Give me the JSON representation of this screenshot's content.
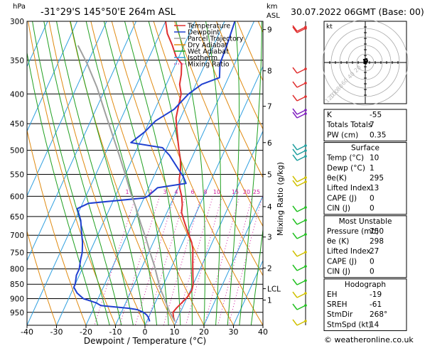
{
  "header": {
    "location": "-31°29'S 145°50'E 264m ASL",
    "datetime": "30.07.2022 06GMT (Base: 00)",
    "hpa_unit": "hPa",
    "km_unit": "km",
    "asl_unit": "ASL",
    "footer": "© weatheronline.co.uk"
  },
  "colors": {
    "temperature": "#e03030",
    "dewpoint": "#2040d0",
    "parcel": "#a0a0a0",
    "dry_adiabat": "#e08a10",
    "wet_adiabat": "#20a020",
    "isotherm": "#30a0e0",
    "mixing_ratio": "#d020a0"
  },
  "chart_data": [
    {
      "type": "line",
      "title": "Skew-T log-P",
      "xlabel": "Dewpoint / Temperature (°C)",
      "ylabel": "hPa",
      "right_label": "Mixing Ratio (g/kg)",
      "xlim": [
        -40,
        40
      ],
      "ylim": [
        300,
        1000
      ],
      "y_scale": "log",
      "x_ticks": [
        -40,
        -30,
        -20,
        -10,
        0,
        10,
        20,
        30,
        40
      ],
      "pressure_ticks": [
        300,
        350,
        400,
        450,
        500,
        550,
        600,
        650,
        700,
        750,
        800,
        850,
        900,
        950
      ],
      "height_ticks": [
        {
          "label": "9",
          "p": 310
        },
        {
          "label": "8",
          "p": 365
        },
        {
          "label": "7",
          "p": 420
        },
        {
          "label": "6",
          "p": 485
        },
        {
          "label": "5",
          "p": 550
        },
        {
          "label": "4",
          "p": 625
        },
        {
          "label": "3",
          "p": 705
        },
        {
          "label": "2",
          "p": 797
        },
        {
          "label": "LCL",
          "p": 865
        },
        {
          "label": "1",
          "p": 905
        }
      ],
      "mixing_ratio_labels": [
        "1",
        "2",
        "3",
        "4",
        "6",
        "8",
        "10",
        "15",
        "20",
        "25"
      ],
      "legend": [
        {
          "name": "Temperature",
          "style": "solid",
          "color": "#e03030"
        },
        {
          "name": "Dewpoint",
          "style": "solid",
          "color": "#2040d0"
        },
        {
          "name": "Parcel Trajectory",
          "style": "solid",
          "color": "#a0a0a0"
        },
        {
          "name": "Dry Adiabat",
          "style": "solid",
          "color": "#e08a10"
        },
        {
          "name": "Wet Adiabat",
          "style": "solid",
          "color": "#20a020"
        },
        {
          "name": "Isotherm",
          "style": "solid",
          "color": "#30a0e0"
        },
        {
          "name": "Mixing Ratio",
          "style": "dotted",
          "color": "#d020a0"
        }
      ],
      "legend_position": "top-left",
      "series": [
        {
          "name": "Temperature",
          "points": [
            [
              9.5,
              985
            ],
            [
              8.5,
              970
            ],
            [
              7.5,
              950
            ],
            [
              8.0,
              935
            ],
            [
              9.0,
              915
            ],
            [
              10.0,
              895
            ],
            [
              10.5,
              870
            ],
            [
              10.0,
              850
            ],
            [
              8.5,
              820
            ],
            [
              7.5,
              800
            ],
            [
              6.5,
              780
            ],
            [
              5.5,
              760
            ],
            [
              4.5,
              740
            ],
            [
              3.0,
              720
            ],
            [
              1.0,
              700
            ],
            [
              -1.0,
              680
            ],
            [
              -3.0,
              660
            ],
            [
              -5.0,
              640
            ],
            [
              -6.0,
              620
            ],
            [
              -7.5,
              600
            ],
            [
              -9.5,
              580
            ],
            [
              -11.0,
              560
            ],
            [
              -12.0,
              540
            ],
            [
              -13.5,
              520
            ],
            [
              -15.5,
              500
            ],
            [
              -17.5,
              480
            ],
            [
              -19.5,
              460
            ],
            [
              -21.5,
              440
            ],
            [
              -22.5,
              420
            ],
            [
              -23.5,
              400
            ],
            [
              -25.5,
              385
            ],
            [
              -26.5,
              370
            ],
            [
              -28.0,
              355
            ],
            [
              -31.0,
              345
            ],
            [
              -34.0,
              330
            ],
            [
              -37.5,
              315
            ],
            [
              -40.0,
              300
            ]
          ]
        },
        {
          "name": "Dewpoint",
          "points": [
            [
              1.0,
              985
            ],
            [
              0.0,
              970
            ],
            [
              -1.0,
              960
            ],
            [
              -2.5,
              950
            ],
            [
              -5.0,
              940
            ],
            [
              -8.0,
              935
            ],
            [
              -18.0,
              925
            ],
            [
              -20.0,
              915
            ],
            [
              -25.0,
              900
            ],
            [
              -28.0,
              880
            ],
            [
              -30.0,
              860
            ],
            [
              -30.0,
              850
            ],
            [
              -31.0,
              820
            ],
            [
              -31.0,
              800
            ],
            [
              -32.0,
              770
            ],
            [
              -32.5,
              750
            ],
            [
              -34.0,
              720
            ],
            [
              -36.0,
              690
            ],
            [
              -38.0,
              660
            ],
            [
              -41.0,
              630
            ],
            [
              -38.0,
              617
            ],
            [
              -20.0,
              604
            ],
            [
              -19.0,
              600
            ],
            [
              -17.0,
              580
            ],
            [
              -8.0,
              570
            ],
            [
              -10.0,
              555
            ],
            [
              -13.5,
              535
            ],
            [
              -18.0,
              510
            ],
            [
              -21.5,
              495
            ],
            [
              -33.0,
              485
            ],
            [
              -30.0,
              465
            ],
            [
              -28.0,
              445
            ],
            [
              -23.5,
              425
            ],
            [
              -21.0,
              400
            ],
            [
              -18.0,
              385
            ],
            [
              -13.0,
              375
            ],
            [
              -15.0,
              355
            ],
            [
              -15.5,
              330
            ],
            [
              -16.0,
              315
            ],
            [
              -16.5,
              300
            ]
          ]
        },
        {
          "name": "Parcel Trajectory",
          "points": [
            [
              9.5,
              985
            ],
            [
              6.0,
              945
            ],
            [
              2.5,
              900
            ],
            [
              -0.5,
              865
            ],
            [
              -3.0,
              830
            ],
            [
              -6.0,
              790
            ],
            [
              -9.5,
              750
            ],
            [
              -13.0,
              710
            ],
            [
              -17.0,
              670
            ],
            [
              -21.0,
              630
            ],
            [
              -25.5,
              590
            ],
            [
              -30.0,
              550
            ],
            [
              -35.0,
              510
            ],
            [
              -40.5,
              470
            ],
            [
              -46.5,
              430
            ],
            [
              -53.0,
              390
            ],
            [
              -60.0,
              355
            ],
            [
              -66.0,
              330
            ]
          ]
        }
      ]
    },
    {
      "type": "scatter",
      "title": "Hodograph",
      "label": "kt",
      "ring_labels": [
        "20",
        "40",
        "60",
        "80",
        "100",
        "120"
      ],
      "points_kt": [
        [
          0,
          0
        ],
        [
          3,
          -2
        ],
        [
          2,
          -5
        ],
        [
          -2,
          -4
        ],
        [
          0,
          1
        ],
        [
          2,
          2
        ]
      ]
    },
    {
      "type": "table",
      "sections": [
        {
          "title": "",
          "rows": [
            {
              "label": "K",
              "value": "-55"
            },
            {
              "label": "Totals Totals",
              "value": "7"
            },
            {
              "label": "PW (cm)",
              "value": "0.35"
            }
          ]
        },
        {
          "title": "Surface",
          "rows": [
            {
              "label": "Temp (°C)",
              "value": "10"
            },
            {
              "label": "Dewp (°C)",
              "value": "1"
            },
            {
              "label": "θe(K)",
              "value": "295"
            },
            {
              "label": "Lifted Index",
              "value": "13"
            },
            {
              "label": "CAPE (J)",
              "value": "0"
            },
            {
              "label": "CIN (J)",
              "value": "0"
            }
          ]
        },
        {
          "title": "Most Unstable",
          "rows": [
            {
              "label": "Pressure (mb)",
              "value": "750"
            },
            {
              "label": "θe (K)",
              "value": "298"
            },
            {
              "label": "Lifted Index",
              "value": "27"
            },
            {
              "label": "CAPE (J)",
              "value": "0"
            },
            {
              "label": "CIN (J)",
              "value": "0"
            }
          ]
        },
        {
          "title": "Hodograph",
          "rows": [
            {
              "label": "EH",
              "value": "-19"
            },
            {
              "label": "SREH",
              "value": "-61"
            },
            {
              "label": "StmDir",
              "value": "268°"
            },
            {
              "label": "StmSpd (kt)",
              "value": "14"
            }
          ]
        }
      ]
    }
  ]
}
